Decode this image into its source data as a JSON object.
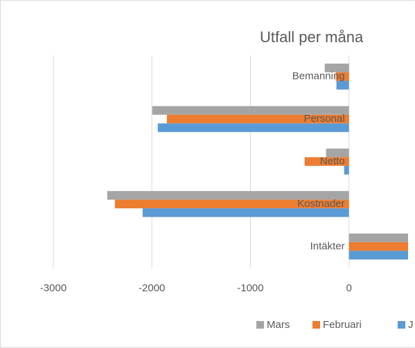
{
  "chart_data": {
    "type": "bar",
    "orientation": "horizontal",
    "title": "Utfall per måna",
    "categories": [
      "Bemanning",
      "Personal",
      "Netto",
      "Kostnader",
      "Intäkter"
    ],
    "series": [
      {
        "name": "Mars",
        "color": "#a5a5a5",
        "values": [
          -246,
          -1996,
          -232,
          -2453,
          650
        ]
      },
      {
        "name": "Februari",
        "color": "#ed7d31",
        "values": [
          -134,
          -1848,
          -450,
          -2375,
          650
        ]
      },
      {
        "name": "J",
        "color": "#5b9bd5",
        "values": [
          -127,
          -1940,
          -49,
          -2094,
          650
        ]
      }
    ],
    "xlim": [
      -3000,
      600
    ],
    "xticks": [
      -3000,
      -2000,
      -1000,
      0
    ],
    "grid": true,
    "legend": "bottom"
  }
}
